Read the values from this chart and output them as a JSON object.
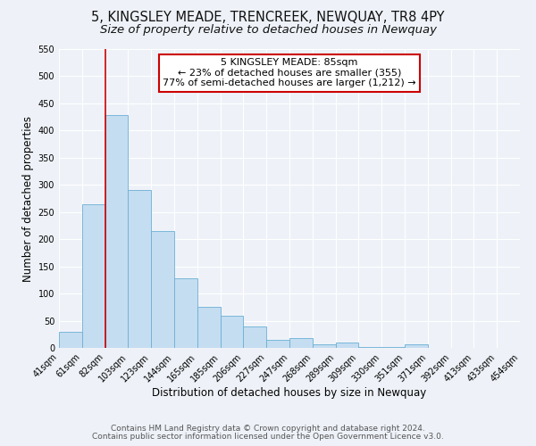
{
  "title": "5, KINGSLEY MEADE, TRENCREEK, NEWQUAY, TR8 4PY",
  "subtitle": "Size of property relative to detached houses in Newquay",
  "xlabel": "Distribution of detached houses by size in Newquay",
  "ylabel": "Number of detached properties",
  "bar_values": [
    30,
    265,
    428,
    291,
    215,
    128,
    76,
    59,
    40,
    14,
    18,
    6,
    10,
    1,
    1,
    6
  ],
  "bin_labels": [
    "41sqm",
    "61sqm",
    "82sqm",
    "103sqm",
    "123sqm",
    "144sqm",
    "165sqm",
    "185sqm",
    "206sqm",
    "227sqm",
    "247sqm",
    "268sqm",
    "289sqm",
    "309sqm",
    "330sqm",
    "351sqm",
    "371sqm",
    "392sqm",
    "413sqm",
    "433sqm",
    "454sqm"
  ],
  "bar_color": "#c5ddf0",
  "bar_edge_color": "#6aafd6",
  "vline_color": "#cc0000",
  "annotation_title": "5 KINGSLEY MEADE: 85sqm",
  "annotation_line1": "← 23% of detached houses are smaller (355)",
  "annotation_line2": "77% of semi-detached houses are larger (1,212) →",
  "annotation_box_color": "#ffffff",
  "annotation_box_edge": "#cc0000",
  "ylim": [
    0,
    550
  ],
  "yticks": [
    0,
    50,
    100,
    150,
    200,
    250,
    300,
    350,
    400,
    450,
    500,
    550
  ],
  "footer1": "Contains HM Land Registry data © Crown copyright and database right 2024.",
  "footer2": "Contains public sector information licensed under the Open Government Licence v3.0.",
  "background_color": "#eef2f8",
  "grid_color": "#ffffff",
  "title_fontsize": 10.5,
  "subtitle_fontsize": 9.5,
  "axis_label_fontsize": 8.5,
  "tick_fontsize": 7,
  "footer_fontsize": 6.5,
  "annotation_fontsize": 8
}
